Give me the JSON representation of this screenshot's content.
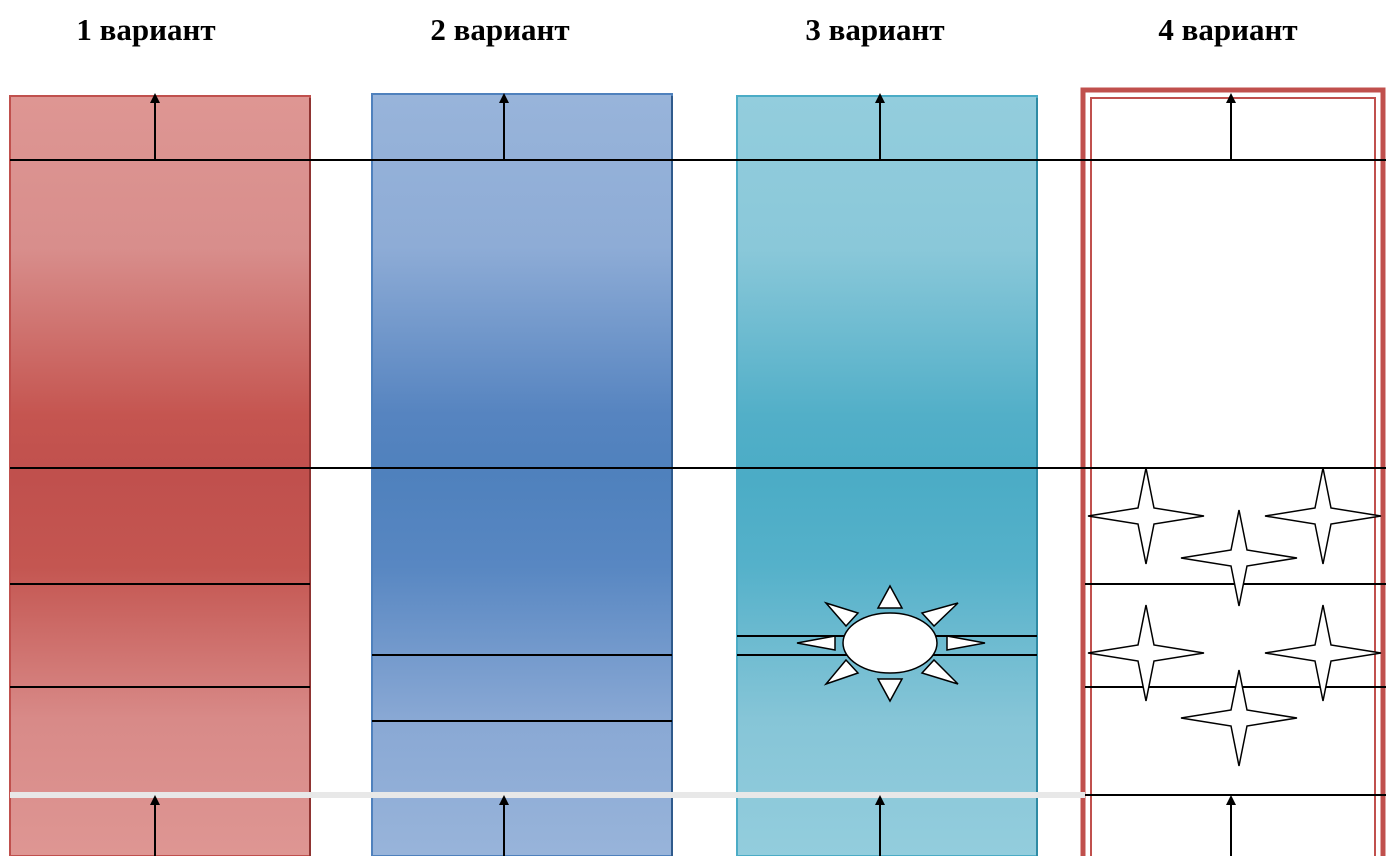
{
  "variants": [
    {
      "label": "1 вариант",
      "fill": "red-gradient"
    },
    {
      "label": "2 вариант",
      "fill": "blue-gradient"
    },
    {
      "label": "3 вариант",
      "fill": "teal-gradient",
      "symbol": "sun-icon"
    },
    {
      "label": "4 вариант",
      "fill": "white-double-border",
      "symbol": "star-icons"
    }
  ],
  "colors": {
    "red_light": "#de9693",
    "red_dark": "#c0504d",
    "blue_light": "#98b4da",
    "blue_dark": "#4f81bd",
    "teal_light": "#93cddd",
    "teal_dark": "#4bacc6",
    "frame_red": "#c0504d",
    "line": "#000000"
  }
}
